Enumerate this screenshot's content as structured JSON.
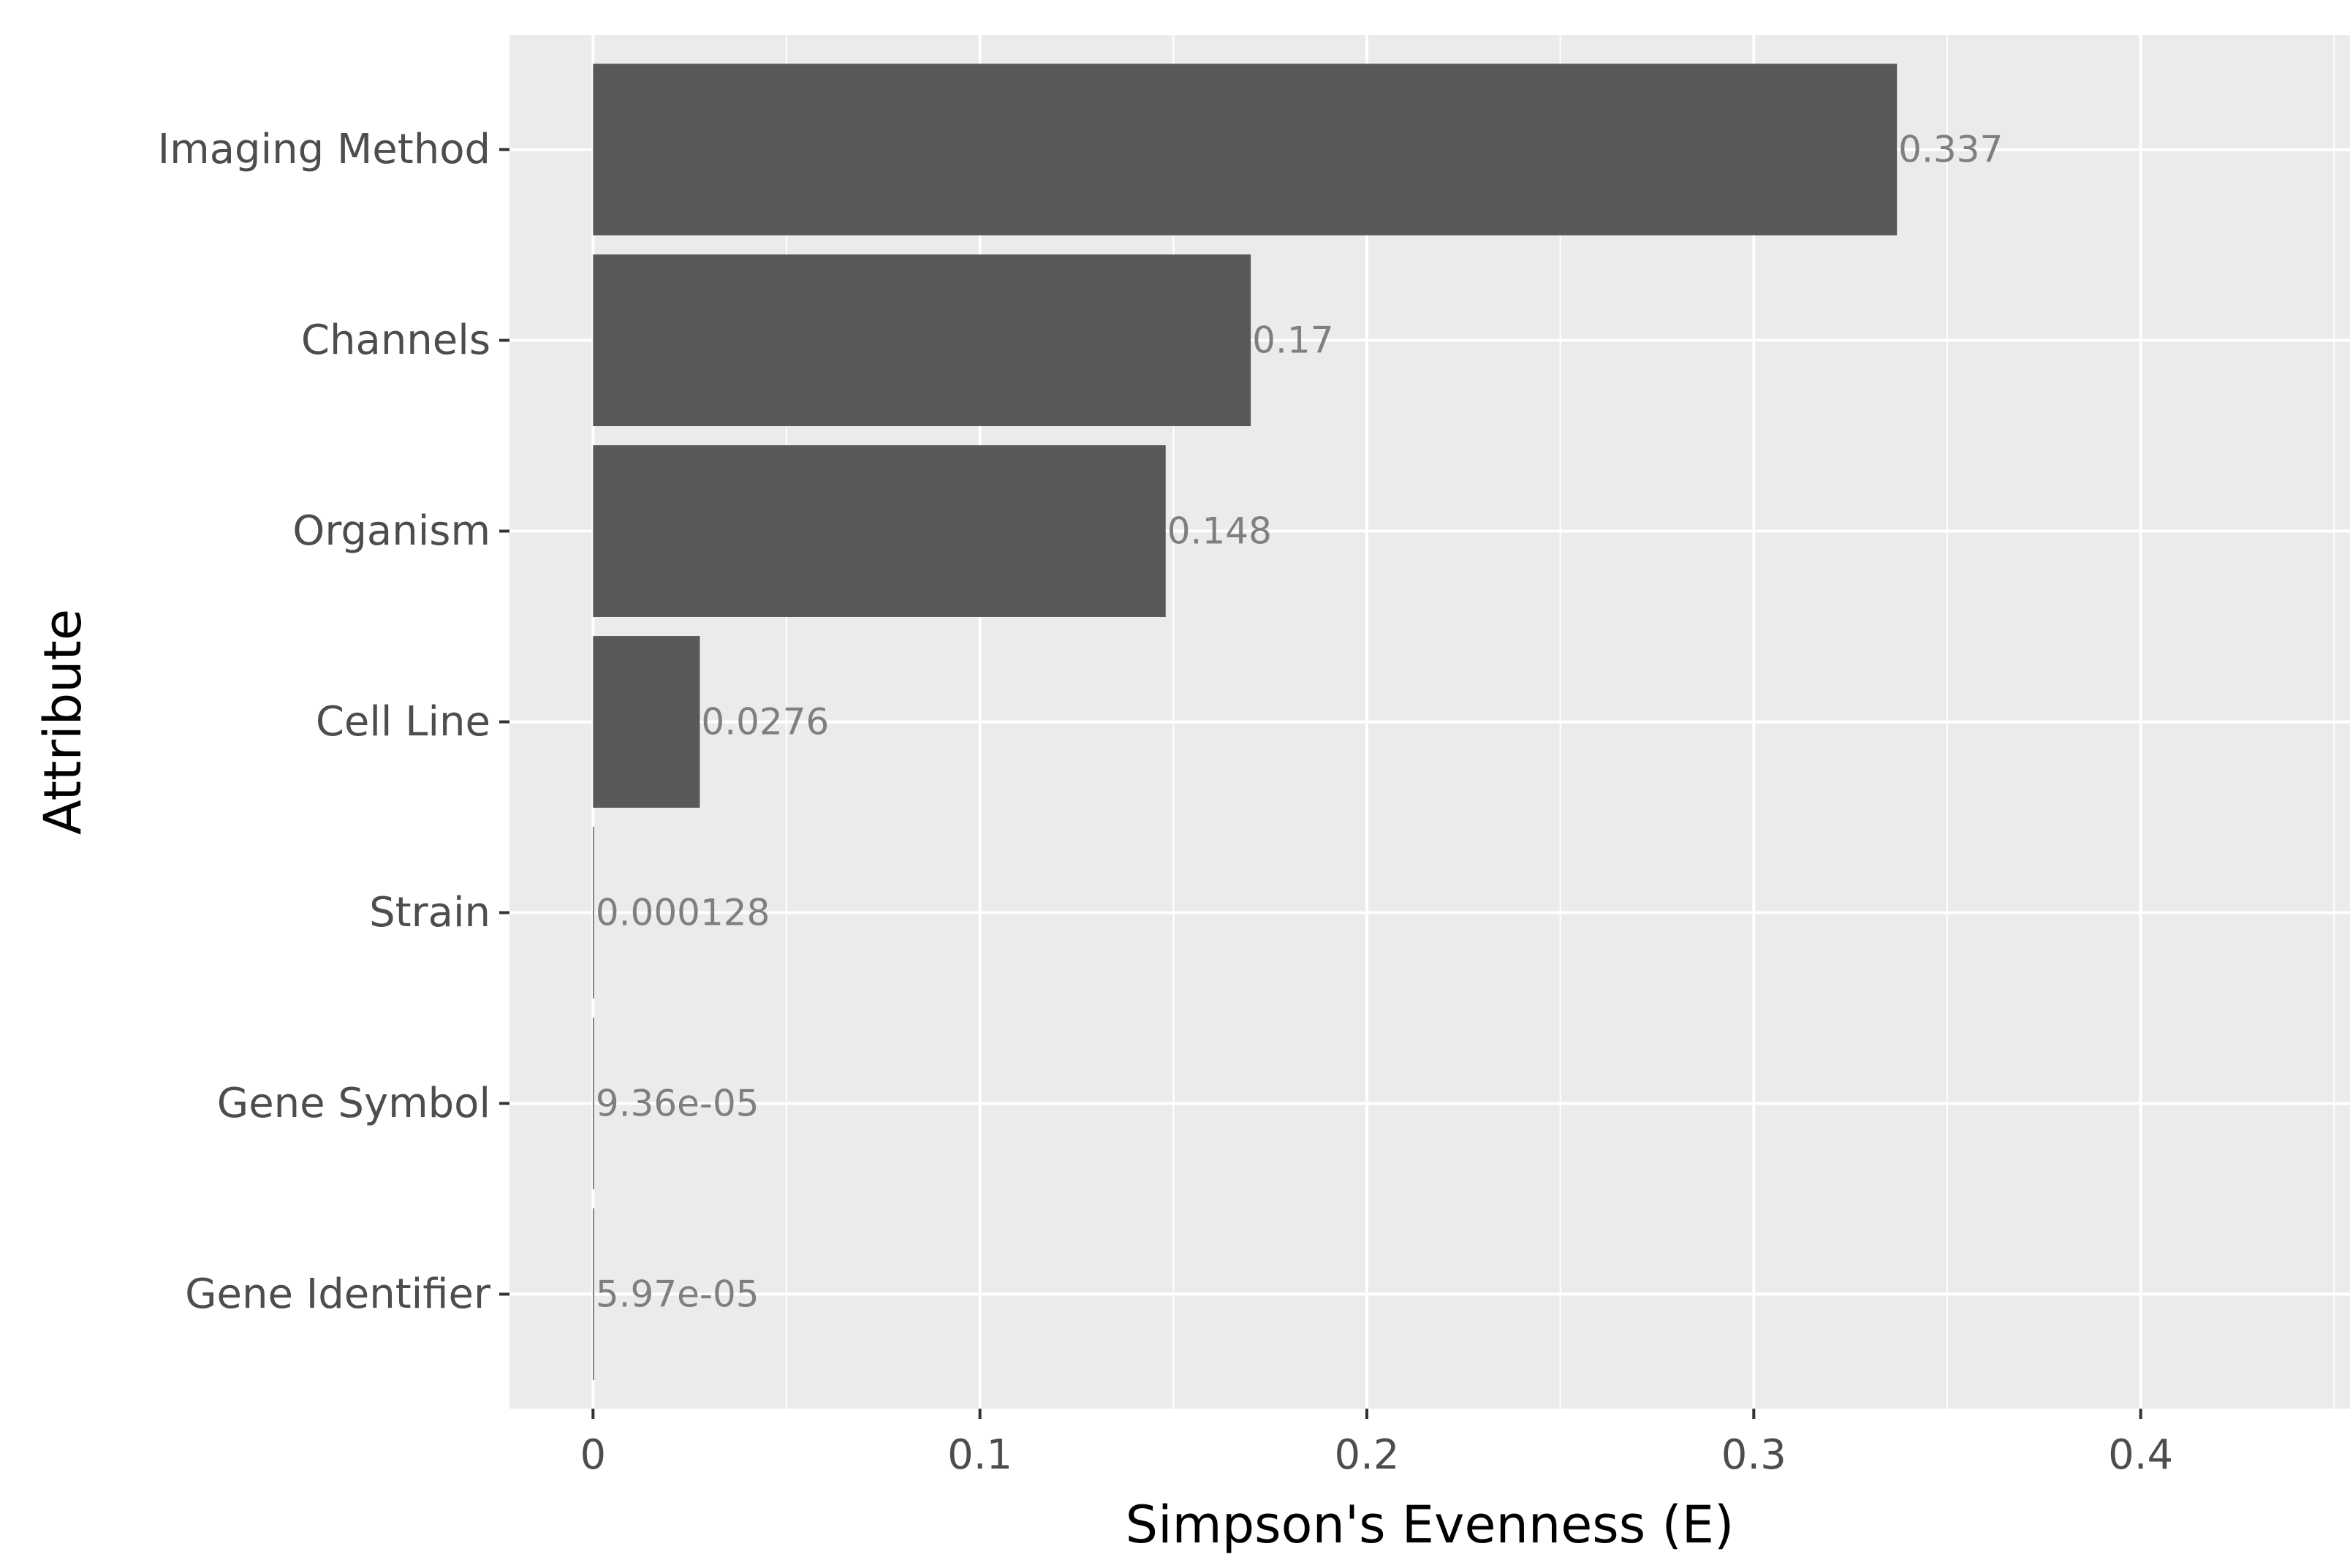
{
  "chart_data": {
    "type": "bar",
    "orientation": "horizontal",
    "categories": [
      "Imaging Method",
      "Channels",
      "Organism",
      "Cell Line",
      "Strain",
      "Gene Symbol",
      "Gene Identifier"
    ],
    "values": [
      0.337,
      0.17,
      0.148,
      0.0276,
      0.000128,
      9.36e-05,
      5.97e-05
    ],
    "value_labels": [
      "0.337",
      "0.17",
      "0.148",
      "0.0276",
      "0.000128",
      "9.36e-05",
      "5.97e-05"
    ],
    "xlabel": "Simpson's Evenness (E)",
    "ylabel": "Attribute",
    "xlim": [
      -0.0216,
      0.4541
    ],
    "xticks": [
      0,
      0.1,
      0.2,
      0.3,
      0.4
    ],
    "xtick_labels": [
      "0",
      "0.1",
      "0.2",
      "0.3",
      "0.4"
    ],
    "grid": true,
    "legend": "none",
    "colors": {
      "bar": "#595959",
      "panel": "#ebebeb",
      "grid": "#ffffff",
      "tick_text": "#4d4d4d",
      "label_text": "#7f7f7f"
    }
  }
}
